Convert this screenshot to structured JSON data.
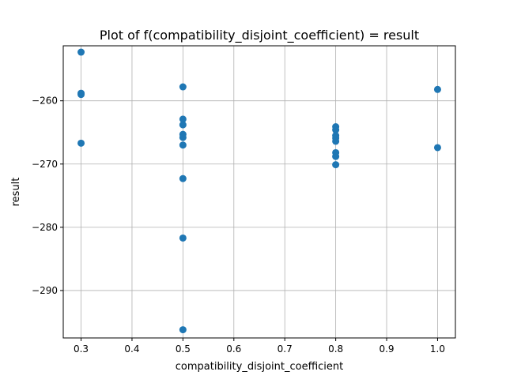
{
  "chart_data": {
    "type": "scatter",
    "title": "Plot of f(compatibility_disjoint_coefficient) = result",
    "xlabel": "compatibility_disjoint_coefficient",
    "ylabel": "result",
    "xlim": [
      0.265,
      1.035
    ],
    "ylim": [
      -297.5,
      -251.3
    ],
    "xticks": [
      0.3,
      0.4,
      0.5,
      0.6,
      0.7,
      0.8,
      0.9,
      1.0
    ],
    "xtick_labels": [
      "0.3",
      "0.4",
      "0.5",
      "0.6",
      "0.7",
      "0.8",
      "0.9",
      "1.0"
    ],
    "yticks": [
      -290,
      -280,
      -270,
      -260
    ],
    "ytick_labels": [
      "−290",
      "−280",
      "−270",
      "−260"
    ],
    "grid": true,
    "marker_color": "#1f77b4",
    "series": [
      {
        "points": [
          {
            "x": 0.3,
            "y": -252.3
          },
          {
            "x": 0.3,
            "y": -258.8
          },
          {
            "x": 0.3,
            "y": -259.0
          },
          {
            "x": 0.3,
            "y": -266.7
          },
          {
            "x": 0.5,
            "y": -257.8
          },
          {
            "x": 0.5,
            "y": -262.9
          },
          {
            "x": 0.5,
            "y": -263.8
          },
          {
            "x": 0.5,
            "y": -265.3
          },
          {
            "x": 0.5,
            "y": -265.8
          },
          {
            "x": 0.5,
            "y": -267.0
          },
          {
            "x": 0.5,
            "y": -272.3
          },
          {
            "x": 0.5,
            "y": -281.7
          },
          {
            "x": 0.5,
            "y": -296.2
          },
          {
            "x": 0.8,
            "y": -264.1
          },
          {
            "x": 0.8,
            "y": -264.6
          },
          {
            "x": 0.8,
            "y": -265.5
          },
          {
            "x": 0.8,
            "y": -265.9
          },
          {
            "x": 0.8,
            "y": -266.4
          },
          {
            "x": 0.8,
            "y": -268.2
          },
          {
            "x": 0.8,
            "y": -268.8
          },
          {
            "x": 0.8,
            "y": -270.1
          },
          {
            "x": 1.0,
            "y": -258.2
          },
          {
            "x": 1.0,
            "y": -267.4
          }
        ]
      }
    ]
  }
}
